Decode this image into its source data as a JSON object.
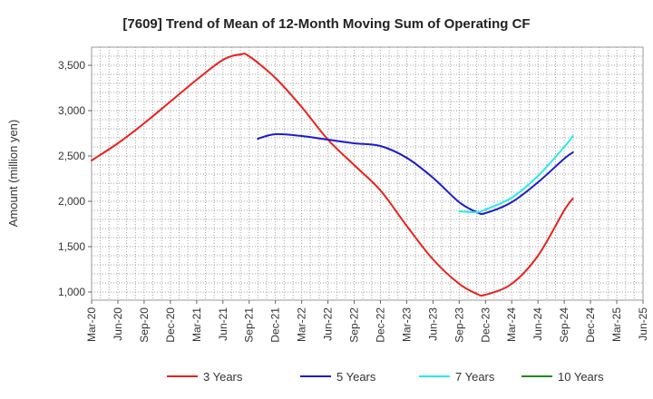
{
  "chart_data": {
    "type": "line",
    "title": "[7609]  Trend of Mean of 12-Month Moving Sum of Operating CF",
    "xlabel": "",
    "ylabel": "Amount (million yen)",
    "x_ticks": [
      "Mar-20",
      "Jun-20",
      "Sep-20",
      "Dec-20",
      "Mar-21",
      "Jun-21",
      "Sep-21",
      "Dec-21",
      "Mar-22",
      "Jun-22",
      "Sep-22",
      "Dec-22",
      "Mar-23",
      "Jun-23",
      "Sep-23",
      "Dec-23",
      "Mar-24",
      "Jun-24",
      "Sep-24",
      "Dec-24",
      "Mar-25",
      "Jun-25"
    ],
    "y_ticks": [
      1000,
      1500,
      2000,
      2500,
      3000,
      3500
    ],
    "y_tick_labels": [
      "1,000",
      "1,500",
      "2,000",
      "2,500",
      "3,000",
      "3,500"
    ],
    "ylim": [
      910,
      3700
    ],
    "grid": true,
    "legend_position": "bottom",
    "series": [
      {
        "name": "3 Years",
        "color": "#e8211d",
        "points": [
          [
            0,
            2450
          ],
          [
            1,
            2640
          ],
          [
            2,
            2860
          ],
          [
            3,
            3100
          ],
          [
            4,
            3340
          ],
          [
            5,
            3560
          ],
          [
            5.67,
            3620
          ],
          [
            6,
            3600
          ],
          [
            7,
            3360
          ],
          [
            8,
            3040
          ],
          [
            9,
            2680
          ],
          [
            10,
            2400
          ],
          [
            11,
            2120
          ],
          [
            12,
            1730
          ],
          [
            13,
            1360
          ],
          [
            14,
            1090
          ],
          [
            14.67,
            980
          ],
          [
            15,
            970
          ],
          [
            16,
            1090
          ],
          [
            17,
            1400
          ],
          [
            18,
            1900
          ],
          [
            18.33,
            2030
          ]
        ]
      },
      {
        "name": "5 Years",
        "color": "#1c1cc8",
        "points": [
          [
            6.33,
            2690
          ],
          [
            7,
            2740
          ],
          [
            8,
            2720
          ],
          [
            9,
            2680
          ],
          [
            10,
            2640
          ],
          [
            11,
            2610
          ],
          [
            12,
            2480
          ],
          [
            13,
            2260
          ],
          [
            14,
            1990
          ],
          [
            14.67,
            1880
          ],
          [
            15,
            1870
          ],
          [
            16,
            1990
          ],
          [
            17,
            2210
          ],
          [
            18,
            2470
          ],
          [
            18.33,
            2540
          ]
        ]
      },
      {
        "name": "7 Years",
        "color": "#2ee8e8",
        "points": [
          [
            14,
            1890
          ],
          [
            14.67,
            1880
          ],
          [
            15,
            1910
          ],
          [
            16,
            2040
          ],
          [
            17,
            2280
          ],
          [
            18,
            2600
          ],
          [
            18.33,
            2720
          ]
        ]
      },
      {
        "name": "10 Years",
        "color": "#1c8c1c",
        "points": []
      }
    ]
  }
}
